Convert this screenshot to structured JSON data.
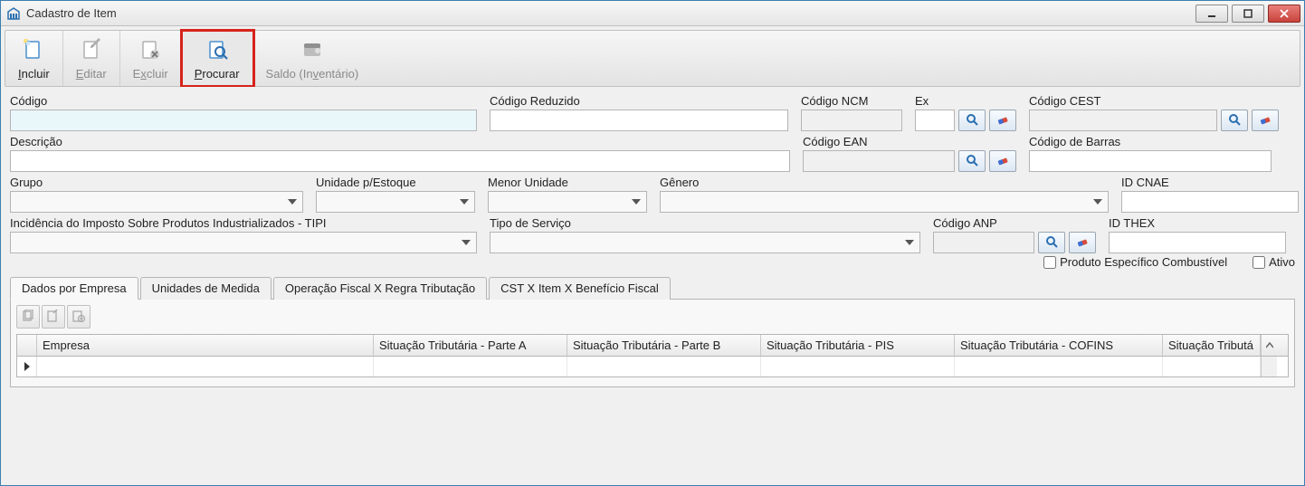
{
  "window": {
    "title": "Cadastro de Item"
  },
  "toolbar": [
    {
      "key": "incluir",
      "label": "Incluir",
      "accel": "I",
      "disabled": false,
      "highlighted": false
    },
    {
      "key": "editar",
      "label": "Editar",
      "accel": "E",
      "disabled": true,
      "highlighted": false
    },
    {
      "key": "excluir",
      "label": "Excluir",
      "accel": "x",
      "disabled": true,
      "highlighted": false
    },
    {
      "key": "procurar",
      "label": "Procurar",
      "accel": "P",
      "disabled": false,
      "highlighted": true
    },
    {
      "key": "saldo",
      "label": "Saldo (Inventário)",
      "accel": "v",
      "disabled": true,
      "highlighted": false
    }
  ],
  "labels": {
    "codigo": "Código",
    "codigo_reduzido": "Código Reduzido",
    "codigo_ncm": "Código NCM",
    "ex": "Ex",
    "codigo_cest": "Código CEST",
    "descricao": "Descrição",
    "codigo_ean": "Código EAN",
    "codigo_barras": "Código de Barras",
    "grupo": "Grupo",
    "unidade_estoque": "Unidade p/Estoque",
    "menor_unidade": "Menor Unidade",
    "genero": "Gênero",
    "id_cnae": "ID CNAE",
    "tipi": "Incidência do Imposto Sobre Produtos Industrializados - TIPI",
    "tipo_servico": "Tipo de Serviço",
    "codigo_anp": "Código ANP",
    "id_thex": "ID THEX",
    "produto_combustivel": "Produto Específico Combustível",
    "ativo": "Ativo"
  },
  "values": {
    "codigo": "",
    "codigo_reduzido": "",
    "codigo_ncm": "",
    "ex": "",
    "codigo_cest": "",
    "descricao": "",
    "codigo_ean": "",
    "codigo_barras": "",
    "grupo": "",
    "unidade_estoque": "",
    "menor_unidade": "",
    "genero": "",
    "id_cnae": "",
    "tipi": "",
    "tipo_servico": "",
    "codigo_anp": "",
    "id_thex": "",
    "produto_combustivel": false,
    "ativo": false
  },
  "tabs": [
    "Dados por Empresa",
    "Unidades de Medida",
    "Operação Fiscal X Regra Tributação",
    "CST X Item X Benefício Fiscal"
  ],
  "grid": {
    "columns": [
      "Empresa",
      "Situação Tributária - Parte A",
      "Situação Tributária - Parte B",
      "Situação Tributária - PIS",
      "Situação Tributária - COFINS",
      "Situação Tributá"
    ],
    "rows": [
      {
        "cells": [
          "",
          "",
          "",
          "",
          "",
          ""
        ]
      }
    ]
  },
  "colors": {
    "highlight_border": "#d6231b",
    "focus_bg": "#e9f7fb",
    "window_border": "#3c7fb1"
  }
}
